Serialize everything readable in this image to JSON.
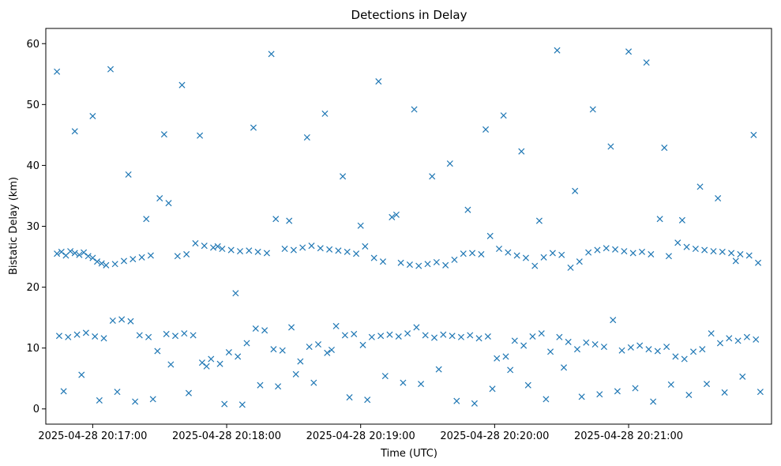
{
  "chart_data": {
    "type": "scatter",
    "title": "Detections in Delay",
    "xlabel": "Time (UTC)",
    "ylabel": "Bistatic Delay (km)",
    "x_ticks": [
      "2025-04-28 20:17:00",
      "2025-04-28 20:18:00",
      "2025-04-28 20:19:00",
      "2025-04-28 20:20:00",
      "2025-04-28 20:21:00"
    ],
    "y_ticks": [
      0,
      10,
      20,
      30,
      40,
      50,
      60
    ],
    "xlim": [
      "2025-04-28 20:16:39",
      "2025-04-28 20:22:04"
    ],
    "ylim": [
      -2.5,
      62.5
    ],
    "marker": "x",
    "color": "#1f77b4",
    "grid": false,
    "x_range_sampled": [
      "2025-04-28 20:16:44",
      "2025-04-28 20:21:59"
    ],
    "series": [
      {
        "t": [
          "20:16:44",
          "20:16:46",
          "20:16:48",
          "20:16:50",
          "20:16:52",
          "20:16:54",
          "20:16:56",
          "20:16:58",
          "20:17:00",
          "20:17:02",
          "20:17:04",
          "20:17:06",
          "20:17:10",
          "20:17:14",
          "20:17:18",
          "20:17:22",
          "20:17:26",
          "20:17:30",
          "20:17:34",
          "20:17:38",
          "20:17:42",
          "20:17:46",
          "20:17:50",
          "20:17:54",
          "20:17:58",
          "20:18:02",
          "20:18:06",
          "20:18:10",
          "20:18:14",
          "20:18:18",
          "20:18:22",
          "20:18:26",
          "20:18:30",
          "20:18:34",
          "20:18:38",
          "20:18:42",
          "20:18:46",
          "20:18:50",
          "20:18:54",
          "20:18:58",
          "20:19:02",
          "20:19:06",
          "20:19:10",
          "20:19:14",
          "20:19:18",
          "20:19:22",
          "20:19:26",
          "20:19:30",
          "20:19:34",
          "20:19:38",
          "20:19:42",
          "20:19:46",
          "20:19:50",
          "20:19:54",
          "20:19:58",
          "20:20:02",
          "20:20:06",
          "20:20:10",
          "20:20:14",
          "20:20:18",
          "20:20:22",
          "20:20:26",
          "20:20:30",
          "20:20:34",
          "20:20:38",
          "20:20:42",
          "20:20:46",
          "20:20:50",
          "20:20:54",
          "20:20:58",
          "20:21:02",
          "20:21:06",
          "20:21:10",
          "20:21:14",
          "20:21:18",
          "20:21:22",
          "20:21:26",
          "20:21:30",
          "20:21:34",
          "20:21:38",
          "20:21:42",
          "20:21:46",
          "20:21:50",
          "20:21:54",
          "20:21:58",
          "20:16:45",
          "20:16:49",
          "20:16:53",
          "20:16:57",
          "20:17:01",
          "20:17:05",
          "20:17:09",
          "20:17:13",
          "20:17:17",
          "20:17:21",
          "20:17:25",
          "20:17:29",
          "20:17:33",
          "20:17:37",
          "20:17:41",
          "20:17:45",
          "20:17:49",
          "20:17:53",
          "20:17:57",
          "20:18:01",
          "20:18:05",
          "20:18:09",
          "20:18:13",
          "20:18:17",
          "20:18:21",
          "20:18:25",
          "20:18:29",
          "20:18:33",
          "20:18:37",
          "20:18:41",
          "20:18:45",
          "20:18:49",
          "20:18:53",
          "20:18:57",
          "20:19:01",
          "20:19:05",
          "20:19:09",
          "20:19:13",
          "20:19:17",
          "20:19:21",
          "20:19:25",
          "20:19:29",
          "20:19:33",
          "20:19:37",
          "20:19:41",
          "20:19:45",
          "20:19:49",
          "20:19:53",
          "20:19:57",
          "20:20:01",
          "20:20:05",
          "20:20:09",
          "20:20:13",
          "20:20:17",
          "20:20:21",
          "20:20:25",
          "20:20:29",
          "20:20:33",
          "20:20:37",
          "20:20:41",
          "20:20:45",
          "20:20:49",
          "20:20:53",
          "20:20:57",
          "20:21:01",
          "20:21:05",
          "20:21:09",
          "20:21:13",
          "20:21:17",
          "20:21:21",
          "20:21:25",
          "20:21:29",
          "20:21:33",
          "20:21:37",
          "20:21:41",
          "20:21:45",
          "20:21:49",
          "20:21:53",
          "20:21:57",
          "20:16:44",
          "20:16:52",
          "20:17:00",
          "20:17:08",
          "20:17:16",
          "20:17:24",
          "20:17:32",
          "20:17:40",
          "20:17:48",
          "20:17:56",
          "20:18:04",
          "20:18:12",
          "20:18:20",
          "20:18:28",
          "20:18:36",
          "20:18:44",
          "20:18:52",
          "20:19:00",
          "20:19:08",
          "20:19:16",
          "20:19:24",
          "20:19:32",
          "20:19:40",
          "20:19:48",
          "20:19:56",
          "20:20:04",
          "20:20:12",
          "20:20:20",
          "20:20:28",
          "20:20:36",
          "20:20:44",
          "20:20:52",
          "20:21:00",
          "20:21:08",
          "20:21:16",
          "20:21:24",
          "20:21:32",
          "20:21:40",
          "20:21:48",
          "20:21:56",
          "20:16:47",
          "20:16:55",
          "20:17:03",
          "20:17:11",
          "20:17:19",
          "20:17:27",
          "20:17:35",
          "20:17:43",
          "20:17:51",
          "20:17:59",
          "20:18:07",
          "20:18:15",
          "20:18:23",
          "20:18:31",
          "20:18:39",
          "20:18:47",
          "20:18:55",
          "20:19:03",
          "20:19:11",
          "20:19:19",
          "20:19:27",
          "20:19:35",
          "20:19:43",
          "20:19:51",
          "20:19:59",
          "20:20:07",
          "20:20:15",
          "20:20:23",
          "20:20:31",
          "20:20:39",
          "20:20:47",
          "20:20:55",
          "20:21:03",
          "20:21:11",
          "20:21:19",
          "20:21:27",
          "20:21:35",
          "20:21:43",
          "20:21:51",
          "20:21:59"
        ],
        "y": [
          25.5,
          25.8,
          25.2,
          25.9,
          25.6,
          25.3,
          25.7,
          25.1,
          24.8,
          24.2,
          23.9,
          23.6,
          23.8,
          24.3,
          24.6,
          24.9,
          25.2,
          34.6,
          33.8,
          25.1,
          25.4,
          27.2,
          26.8,
          26.5,
          26.3,
          26.1,
          25.9,
          26.0,
          25.8,
          25.6,
          31.2,
          26.3,
          26.1,
          26.5,
          26.8,
          26.4,
          26.2,
          26.0,
          25.8,
          25.5,
          26.7,
          24.8,
          24.2,
          31.5,
          24.0,
          23.7,
          23.5,
          23.8,
          24.1,
          23.6,
          24.5,
          25.5,
          25.6,
          25.4,
          28.4,
          26.3,
          25.7,
          25.2,
          24.8,
          23.5,
          24.9,
          25.6,
          25.3,
          23.2,
          24.2,
          25.7,
          26.1,
          26.4,
          26.2,
          25.9,
          25.6,
          25.8,
          25.4,
          31.2,
          25.1,
          27.3,
          26.6,
          26.3,
          26.1,
          25.9,
          25.8,
          25.6,
          25.4,
          25.2,
          24.0,
          12.0,
          11.8,
          12.2,
          12.5,
          11.9,
          11.6,
          14.5,
          14.7,
          14.4,
          12.1,
          11.8,
          9.5,
          12.3,
          12.0,
          12.4,
          12.1,
          7.6,
          8.2,
          7.4,
          9.3,
          8.6,
          10.8,
          13.2,
          12.9,
          9.8,
          9.6,
          13.4,
          7.8,
          10.2,
          10.6,
          9.2,
          13.6,
          12.1,
          12.3,
          10.5,
          11.8,
          12.0,
          12.2,
          11.9,
          12.4,
          13.4,
          12.1,
          11.7,
          12.2,
          12.0,
          11.8,
          12.1,
          11.6,
          11.9,
          8.3,
          8.6,
          11.2,
          10.4,
          11.9,
          12.4,
          9.4,
          11.8,
          11.0,
          9.8,
          10.9,
          10.6,
          10.2,
          14.6,
          9.6,
          10.1,
          10.4,
          9.8,
          9.5,
          10.2,
          8.6,
          8.2,
          9.4,
          9.8,
          12.4,
          10.8,
          11.6,
          11.2,
          11.8,
          11.4,
          55.4,
          45.6,
          48.1,
          55.8,
          38.5,
          31.2,
          45.1,
          53.2,
          44.9,
          26.7,
          19.0,
          46.2,
          58.3,
          30.9,
          44.6,
          48.5,
          38.2,
          30.1,
          53.8,
          31.9,
          49.2,
          38.2,
          40.3,
          32.7,
          45.9,
          48.2,
          42.3,
          30.9,
          58.9,
          35.8,
          49.2,
          43.1,
          58.7,
          56.9,
          42.9,
          31.0,
          36.5,
          34.6,
          24.3,
          45.0,
          2.9,
          5.6,
          1.4,
          2.8,
          1.2,
          1.6,
          7.3,
          2.6,
          7.0,
          0.8,
          0.7,
          3.9,
          3.7,
          5.7,
          4.3,
          9.7,
          1.9,
          1.5,
          5.4,
          4.3,
          4.1,
          6.5,
          1.3,
          0.9,
          3.3,
          6.4,
          3.9,
          1.6,
          6.8,
          2.0,
          2.4,
          2.9,
          3.4,
          1.2,
          4.0,
          2.3,
          4.1,
          2.7,
          5.3,
          2.8
        ]
      }
    ]
  }
}
